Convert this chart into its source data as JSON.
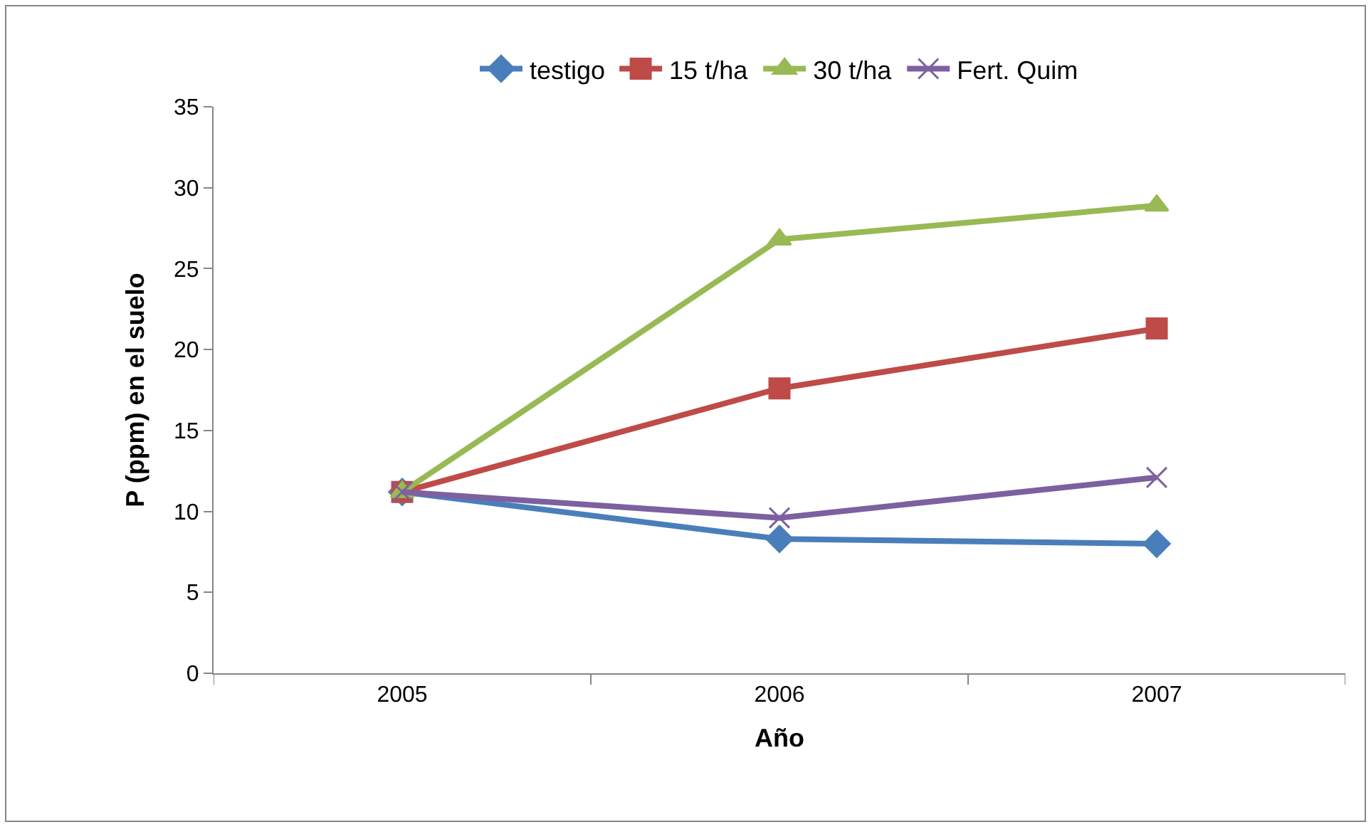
{
  "chart_data": {
    "type": "line",
    "xlabel": "Año",
    "ylabel": "P (ppm) en el suelo",
    "categories": [
      "2005",
      "2006",
      "2007"
    ],
    "series": [
      {
        "name": "testigo",
        "color": "#4a7ebb",
        "marker": "diamond",
        "values": [
          11.2,
          8.3,
          8.0
        ]
      },
      {
        "name": "15 t/ha",
        "color": "#be4b48",
        "marker": "square",
        "values": [
          11.2,
          17.6,
          21.3
        ]
      },
      {
        "name": "30 t/ha",
        "color": "#98b954",
        "marker": "triangle",
        "values": [
          11.2,
          26.8,
          28.9
        ]
      },
      {
        "name": "Fert. Quim",
        "color": "#7d60a0",
        "marker": "cross",
        "values": [
          11.2,
          9.6,
          12.1
        ]
      }
    ],
    "ylim": [
      0,
      35
    ],
    "yticks": [
      0,
      5,
      10,
      15,
      20,
      25,
      30,
      35
    ],
    "legend": "top",
    "line_style": "solid"
  }
}
